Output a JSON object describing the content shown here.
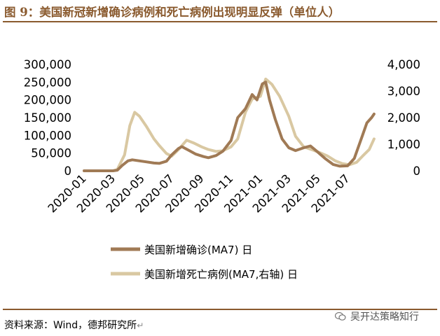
{
  "figure": {
    "title": "图 9：美国新冠新增确诊病例和死亡病例出现明显反弹（单位人）",
    "source": "资料来源：Wind，德邦研究所",
    "watermark": "吴开达策略知行"
  },
  "colors": {
    "rule": "#8a5a2e",
    "series_cases": "#a07a55",
    "series_deaths": "#d9c8a2"
  },
  "chart_data": {
    "type": "line",
    "title": "",
    "x_start": "2020-01",
    "x_end": "2021-08",
    "x_ticks": [
      "2020-01",
      "2020-03",
      "2020-05",
      "2020-07",
      "2020-09",
      "2020-11",
      "2021-01",
      "2021-03",
      "2021-05",
      "2021-07"
    ],
    "y_left": {
      "min": 0,
      "max": 300000,
      "ticks": [
        "0",
        "50,000",
        "100,000",
        "150,000",
        "200,000",
        "250,000",
        "300,000"
      ]
    },
    "y_right": {
      "min": 0,
      "max": 4000,
      "ticks": [
        "0",
        "1,000",
        "2,000",
        "3,000",
        "4,000"
      ]
    },
    "legend_suffix": "日",
    "series": [
      {
        "name": "美国新增确诊(MA7)",
        "axis": "left",
        "points": [
          [
            "2020-01",
            0
          ],
          [
            "2020-02",
            0
          ],
          [
            "2020-03-01",
            0
          ],
          [
            "2020-03-10",
            1500
          ],
          [
            "2020-03-20",
            15000
          ],
          [
            "2020-04-01",
            28000
          ],
          [
            "2020-04-10",
            31000
          ],
          [
            "2020-04-25",
            28000
          ],
          [
            "2020-05-10",
            25000
          ],
          [
            "2020-05-25",
            22000
          ],
          [
            "2020-06-05",
            21000
          ],
          [
            "2020-06-20",
            27000
          ],
          [
            "2020-07-01",
            45000
          ],
          [
            "2020-07-15",
            63000
          ],
          [
            "2020-07-22",
            68000
          ],
          [
            "2020-08-05",
            58000
          ],
          [
            "2020-08-20",
            47000
          ],
          [
            "2020-09-05",
            40000
          ],
          [
            "2020-09-15",
            37000
          ],
          [
            "2020-10-01",
            43000
          ],
          [
            "2020-10-15",
            55000
          ],
          [
            "2020-11-01",
            85000
          ],
          [
            "2020-11-15",
            150000
          ],
          [
            "2020-12-01",
            175000
          ],
          [
            "2020-12-15",
            215000
          ],
          [
            "2020-12-25",
            200000
          ],
          [
            "2021-01-05",
            245000
          ],
          [
            "2021-01-12",
            250000
          ],
          [
            "2021-01-20",
            200000
          ],
          [
            "2021-02-01",
            145000
          ],
          [
            "2021-02-15",
            90000
          ],
          [
            "2021-03-01",
            65000
          ],
          [
            "2021-03-15",
            57000
          ],
          [
            "2021-04-01",
            65000
          ],
          [
            "2021-04-15",
            70000
          ],
          [
            "2021-05-01",
            52000
          ],
          [
            "2021-05-15",
            35000
          ],
          [
            "2021-06-01",
            18000
          ],
          [
            "2021-06-15",
            13000
          ],
          [
            "2021-07-01",
            14000
          ],
          [
            "2021-07-15",
            35000
          ],
          [
            "2021-08-01",
            100000
          ],
          [
            "2021-08-10",
            135000
          ],
          [
            "2021-08-20",
            150000
          ],
          [
            "2021-08-25",
            160000
          ]
        ]
      },
      {
        "name": "美国新增死亡病例(MA7,右轴)",
        "axis": "right",
        "points": [
          [
            "2020-01",
            0
          ],
          [
            "2020-02",
            0
          ],
          [
            "2020-03-01",
            0
          ],
          [
            "2020-03-10",
            50
          ],
          [
            "2020-03-25",
            600
          ],
          [
            "2020-04-05",
            1700
          ],
          [
            "2020-04-15",
            2200
          ],
          [
            "2020-04-25",
            2050
          ],
          [
            "2020-05-10",
            1650
          ],
          [
            "2020-05-25",
            1200
          ],
          [
            "2020-06-05",
            950
          ],
          [
            "2020-06-20",
            650
          ],
          [
            "2020-07-01",
            550
          ],
          [
            "2020-07-15",
            800
          ],
          [
            "2020-08-01",
            1150
          ],
          [
            "2020-08-15",
            1050
          ],
          [
            "2020-09-01",
            900
          ],
          [
            "2020-09-15",
            800
          ],
          [
            "2020-10-01",
            730
          ],
          [
            "2020-10-15",
            750
          ],
          [
            "2020-11-01",
            900
          ],
          [
            "2020-11-15",
            1200
          ],
          [
            "2020-12-01",
            2200
          ],
          [
            "2020-12-15",
            2700
          ],
          [
            "2021-01-01",
            2800
          ],
          [
            "2021-01-12",
            3450
          ],
          [
            "2021-01-25",
            3250
          ],
          [
            "2021-02-10",
            2800
          ],
          [
            "2021-03-01",
            2050
          ],
          [
            "2021-03-15",
            1300
          ],
          [
            "2021-04-01",
            900
          ],
          [
            "2021-04-20",
            780
          ],
          [
            "2021-05-05",
            680
          ],
          [
            "2021-05-20",
            560
          ],
          [
            "2021-06-05",
            380
          ],
          [
            "2021-06-20",
            270
          ],
          [
            "2021-07-05",
            230
          ],
          [
            "2021-07-20",
            320
          ],
          [
            "2021-08-01",
            550
          ],
          [
            "2021-08-15",
            800
          ],
          [
            "2021-08-25",
            1200
          ]
        ]
      }
    ]
  }
}
